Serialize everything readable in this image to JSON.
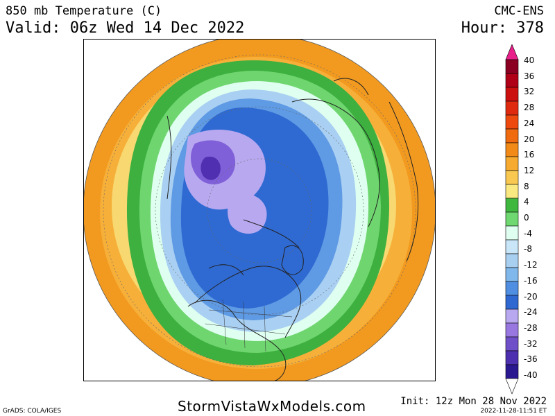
{
  "header": {
    "title": "850 mb Temperature (C)",
    "valid": "Valid: 06z Wed 14 Dec 2022",
    "model": "CMC-ENS",
    "hour": "Hour: 378"
  },
  "footer": {
    "website": "StormVistaWxModels.com",
    "grads": "GrADS: COLA/IGES",
    "init": "Init: 12z Mon 28 Nov 2022",
    "timestamp": "2022-11-28-11:51 ET"
  },
  "colorbar": {
    "labels": [
      "40",
      "36",
      "32",
      "28",
      "24",
      "20",
      "16",
      "12",
      "8",
      "4",
      "0",
      "-4",
      "-8",
      "-12",
      "-16",
      "-20",
      "-24",
      "-28",
      "-32",
      "-36",
      "-40"
    ],
    "colors": [
      "#8b0022",
      "#b00018",
      "#cc1010",
      "#e02a10",
      "#ee4a10",
      "#f06a10",
      "#f28a18",
      "#f6aa30",
      "#f8c850",
      "#fae880",
      "#40b840",
      "#70d870",
      "#dffff0",
      "#c8e6f8",
      "#a8cff0",
      "#80b8ec",
      "#4f8ee0",
      "#2e68d0",
      "#b8a8f0",
      "#9878e0",
      "#7050c8",
      "#4c30b0",
      "#2a1890"
    ],
    "top_color": "#e8208a",
    "bottom_color": "#ffffff"
  }
}
